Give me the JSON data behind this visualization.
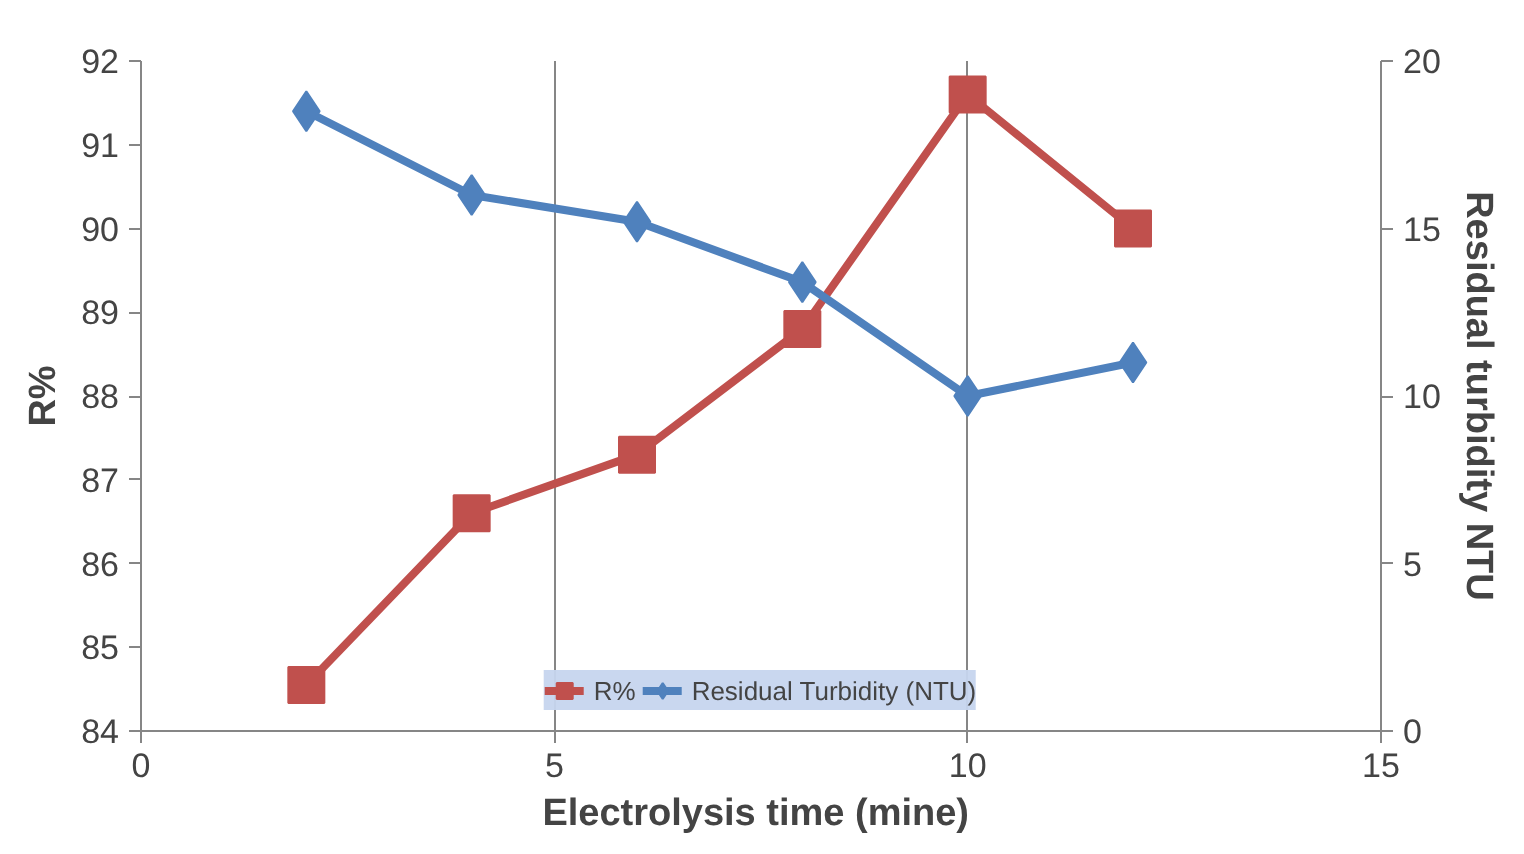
{
  "chart_data": {
    "type": "line",
    "xlabel": "Electrolysis  time (mine)",
    "ylabel": "R%",
    "y2label": "Residual turbidity NTU",
    "x": [
      2,
      4,
      6,
      8,
      10,
      12
    ],
    "series": [
      {
        "name": "R%",
        "color": "#c0504d",
        "marker": "square",
        "values": [
          84.55,
          86.6,
          87.3,
          88.8,
          91.6,
          90.0
        ]
      },
      {
        "name": "Residual Turbidity (NTU)",
        "color": "#4f81bd",
        "marker": "diamond",
        "axis": "y2",
        "values": [
          18.5,
          16.0,
          15.2,
          13.4,
          10.0,
          11.0
        ]
      }
    ],
    "xlim": [
      0,
      15
    ],
    "xticks": [
      0,
      5,
      10,
      15
    ],
    "ylim": [
      84,
      92
    ],
    "yticks": [
      84,
      85,
      86,
      87,
      88,
      89,
      90,
      91,
      92
    ],
    "y2lim": [
      0,
      20
    ],
    "y2ticks": [
      0,
      5,
      10,
      15,
      20
    ],
    "grid": "x",
    "legend": "bottom"
  }
}
